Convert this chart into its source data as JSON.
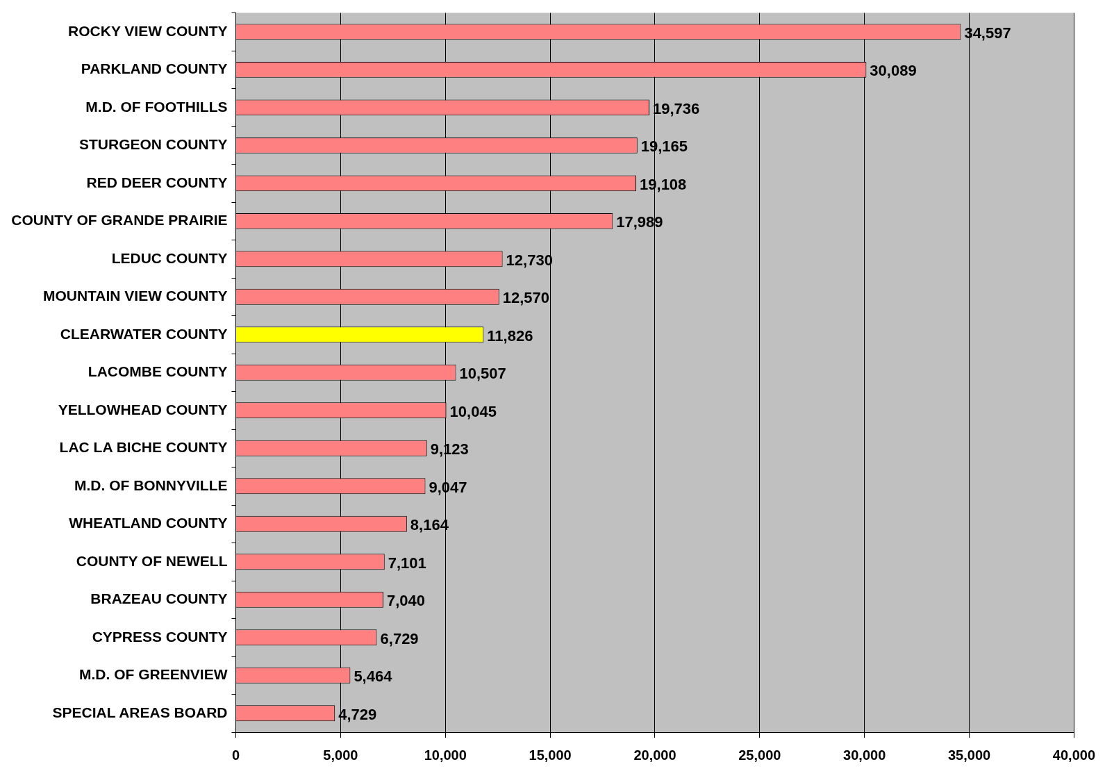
{
  "chart_data": {
    "type": "bar",
    "orientation": "horizontal",
    "categories": [
      "ROCKY VIEW COUNTY",
      "PARKLAND COUNTY",
      "M.D. OF FOOTHILLS",
      "STURGEON COUNTY",
      "RED DEER COUNTY",
      "COUNTY OF GRANDE PRAIRIE",
      "LEDUC COUNTY",
      "MOUNTAIN VIEW COUNTY",
      "CLEARWATER COUNTY",
      "LACOMBE COUNTY",
      "YELLOWHEAD COUNTY",
      "LAC LA BICHE COUNTY",
      "M.D. OF BONNYVILLE",
      "WHEATLAND COUNTY",
      "COUNTY OF NEWELL",
      "BRAZEAU COUNTY",
      "CYPRESS COUNTY",
      "M.D. OF GREENVIEW",
      "SPECIAL AREAS BOARD"
    ],
    "values": [
      34597,
      30089,
      19736,
      19165,
      19108,
      17989,
      12730,
      12570,
      11826,
      10507,
      10045,
      9123,
      9047,
      8164,
      7101,
      7040,
      6729,
      5464,
      4729
    ],
    "value_labels": [
      "34,597",
      "30,089",
      "19,736",
      "19,165",
      "19,108",
      "17,989",
      "12,730",
      "12,570",
      "11,826",
      "10,507",
      "10,045",
      "9,123",
      "9,047",
      "8,164",
      "7,101",
      "7,040",
      "6,729",
      "5,464",
      "4,729"
    ],
    "colors": [
      "#ff8080",
      "#ff8080",
      "#ff8080",
      "#ff8080",
      "#ff8080",
      "#ff8080",
      "#ff8080",
      "#ff8080",
      "#ffff00",
      "#ff8080",
      "#ff8080",
      "#ff8080",
      "#ff8080",
      "#ff8080",
      "#ff8080",
      "#ff8080",
      "#ff8080",
      "#ff8080",
      "#ff8080"
    ],
    "xlim": [
      0,
      40000
    ],
    "xticks": [
      {
        "value": 0,
        "label": "0"
      },
      {
        "value": 5000,
        "label": "5,000"
      },
      {
        "value": 10000,
        "label": "10,000"
      },
      {
        "value": 15000,
        "label": "15,000"
      },
      {
        "value": 20000,
        "label": "20,000"
      },
      {
        "value": 25000,
        "label": "25,000"
      },
      {
        "value": 30000,
        "label": "30,000"
      },
      {
        "value": 35000,
        "label": "35,000"
      },
      {
        "value": 40000,
        "label": "40,000"
      }
    ],
    "grid": "x",
    "legend": false
  }
}
